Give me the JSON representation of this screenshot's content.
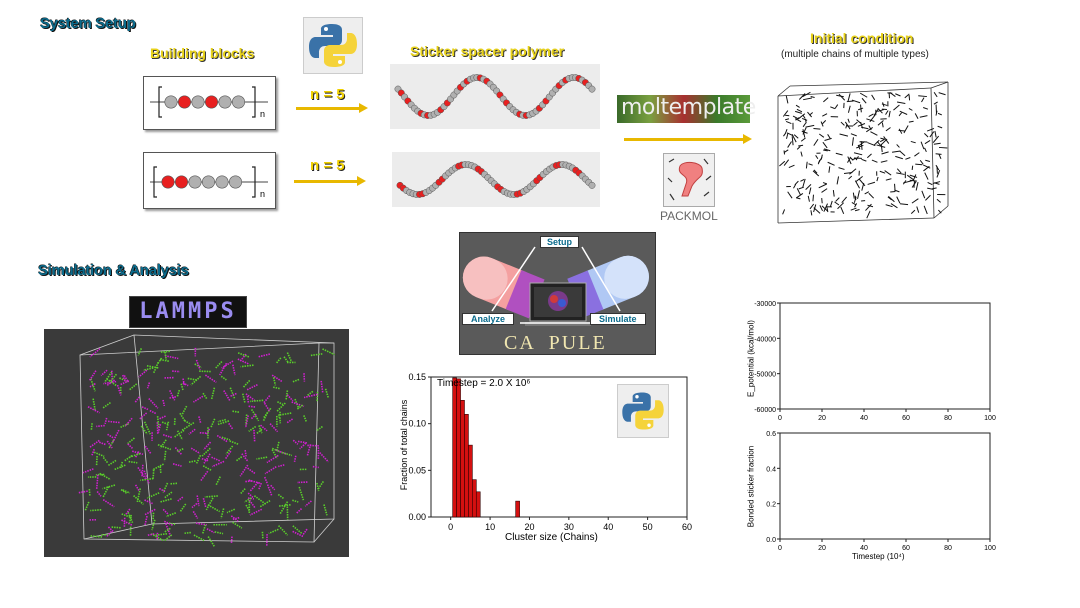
{
  "sections": {
    "setup_title": "System Setup",
    "sim_title": "Simulation & Analysis"
  },
  "setup": {
    "building_blocks": "Building blocks",
    "sticker_spacer": "Sticker spacer polymer",
    "initial_condition": "Initial condition",
    "initial_note": "(multiple chains of multiple types)",
    "n_label_1": "n = 5",
    "n_label_2": "n = 5",
    "block_sub_1": "n",
    "block_sub_2": "n",
    "moltemplate": "moltemplate",
    "packmol": "PACKMOL",
    "block1_pattern": [
      "S",
      "R",
      "S",
      "R",
      "S",
      "S"
    ],
    "block2_pattern": [
      "R",
      "R",
      "S",
      "S",
      "S",
      "S"
    ]
  },
  "campule": {
    "setup": "Setup",
    "analyze": "Analyze",
    "simulate": "Simulate",
    "logo": "CA  PULE"
  },
  "lammps_logo": "LAMMPS",
  "colors": {
    "red": "#e82020",
    "gray": "#b0b0b0",
    "magenta": "#d020d0",
    "green": "#5ad02a",
    "yellow": "#f0d000",
    "arrow": "#e8b800"
  },
  "chart_data": [
    {
      "type": "bar",
      "annotation": "Timestep = 2.0 X 10⁶",
      "xlabel": "Cluster size (Chains)",
      "ylabel": "Fraction of total chains",
      "xlim": [
        -5,
        60
      ],
      "ylim": [
        0,
        0.15
      ],
      "xticks": [
        "0",
        "10",
        "20",
        "30",
        "40",
        "50",
        "60"
      ],
      "yticks": [
        "0.00",
        "0.05",
        "0.10",
        "0.15"
      ],
      "x": [
        1,
        2,
        3,
        4,
        5,
        6,
        7,
        17
      ],
      "values": [
        0.149,
        0.148,
        0.125,
        0.11,
        0.077,
        0.04,
        0.027,
        0.017
      ],
      "grid": false
    },
    {
      "type": "line",
      "xlabel": "",
      "ylabel": "E_potential (kcal/mol)",
      "xlim": [
        0,
        100
      ],
      "ylim": [
        -60000,
        -30000
      ],
      "xticks": [
        "0",
        "20",
        "40",
        "60",
        "80",
        "100"
      ],
      "yticks": [
        "-60000",
        "-50000",
        "-40000",
        "-30000"
      ],
      "series": []
    },
    {
      "type": "line",
      "xlabel": "Timestep (10⁴)",
      "ylabel": "Bonded sticker fraction",
      "xlim": [
        0,
        100
      ],
      "ylim": [
        0,
        0.6
      ],
      "xticks": [
        "0",
        "20",
        "40",
        "60",
        "80",
        "100"
      ],
      "yticks": [
        "0.0",
        "0.2",
        "0.4",
        "0.6"
      ],
      "series": []
    }
  ]
}
